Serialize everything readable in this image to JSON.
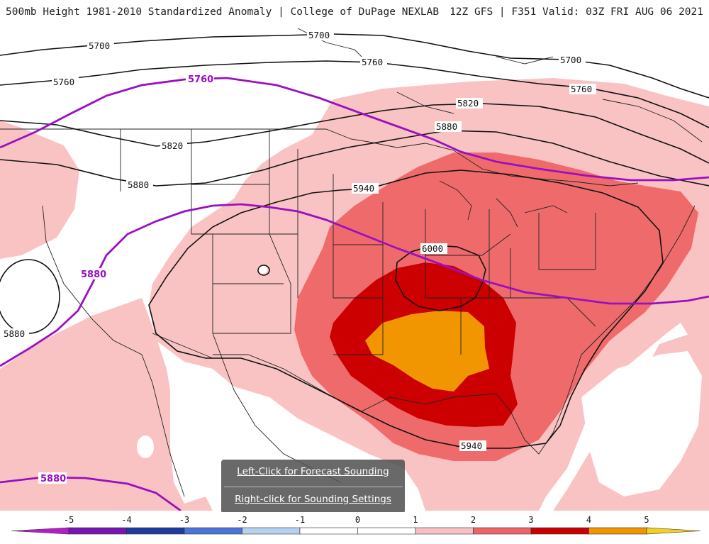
{
  "header": {
    "left_title": "500mb Height 1981-2010 Standardized Anomaly | College of DuPage NEXLAB",
    "right_title": "12Z GFS | F351 Valid: 03Z FRI AUG 06 2021"
  },
  "contours": {
    "black_labels": [
      "5700",
      "5700",
      "5700",
      "5760",
      "5760",
      "5760",
      "5820",
      "5820",
      "5880",
      "5880",
      "5880",
      "5940",
      "5940",
      "6000"
    ],
    "purple_labels": [
      "5760",
      "5880",
      "5880"
    ]
  },
  "popup": {
    "forecast_link": "Left-Click for Forecast Sounding",
    "settings_link": "Right-click for Sounding Settings"
  },
  "colorbar": {
    "ticks": [
      "-5",
      "-4",
      "-3",
      "-2",
      "-1",
      "0",
      "1",
      "2",
      "3",
      "4",
      "5"
    ],
    "colors": [
      "#b41ec8",
      "#7814b4",
      "#1e3ca0",
      "#4a74d8",
      "#b4d2ee",
      "#ffffff",
      "#ffffff",
      "#f8c0c0",
      "#ee6464",
      "#c80000",
      "#f09400",
      "#f0d020"
    ]
  },
  "colors": {
    "anom1": "#f9c3c3",
    "anom2": "#ef6b6b",
    "anom3": "#cc0000",
    "anom4": "#f19600",
    "purple": "#9b0fc2"
  }
}
